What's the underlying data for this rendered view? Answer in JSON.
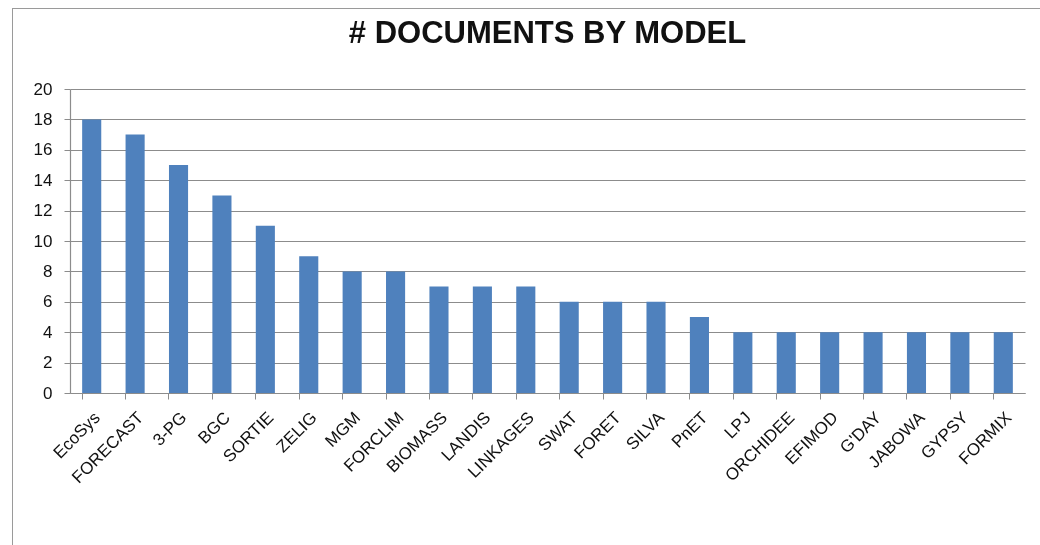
{
  "chart_data": {
    "type": "bar",
    "title": "# DOCUMENTS BY MODEL",
    "categories": [
      "EcoSys",
      "FORECAST",
      "3-PG",
      "BGC",
      "SORTIE",
      "ZELIG",
      "MGM",
      "FORCLIM",
      "BIOMASS",
      "LANDIS",
      "LINKAGES",
      "SWAT",
      "FORET",
      "SILVA",
      "PnET",
      "LPJ",
      "ORCHIDEE",
      "EFIMOD",
      "G'DAY",
      "JABOWA",
      "GYPSY",
      "FORMIX"
    ],
    "values": [
      18,
      17,
      15,
      13,
      11,
      9,
      8,
      8,
      7,
      7,
      7,
      6,
      6,
      6,
      5,
      4,
      4,
      4,
      4,
      4,
      4,
      4
    ],
    "color": "#4f81bd",
    "ylim": [
      0,
      20
    ],
    "yticks": [
      0,
      2,
      4,
      6,
      8,
      10,
      12,
      14,
      16,
      18,
      20
    ],
    "grid": "y"
  }
}
